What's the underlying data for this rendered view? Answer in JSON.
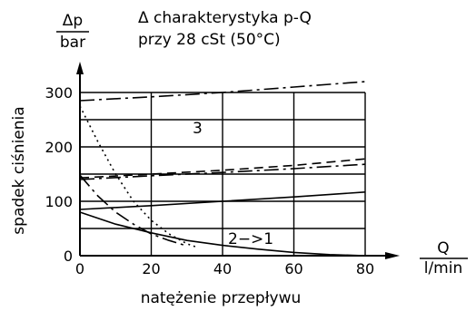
{
  "chart_data": {
    "type": "line",
    "title": "Δ charakterystyka p-Q",
    "subtitle": "przy 28 cSt (50°C)",
    "ylabel": "spadek ciśnienia",
    "xlabel": "natężenie przepływu",
    "y_unit": {
      "symbol": "Δp",
      "unit": "bar"
    },
    "x_unit": {
      "symbol": "Q",
      "unit": "l/min"
    },
    "xlim": [
      0,
      80
    ],
    "ylim": [
      0,
      300
    ],
    "x_ticks": [
      0,
      20,
      40,
      60,
      80
    ],
    "y_ticks": [
      0,
      100,
      200,
      300
    ],
    "grid": true,
    "annotations": [
      "3",
      "2−>1"
    ],
    "series": [
      {
        "style": "dashdot",
        "x": [
          0,
          20,
          40,
          60,
          80
        ],
        "y": [
          285,
          292,
          300,
          310,
          320
        ]
      },
      {
        "style": "dashed",
        "x": [
          0,
          20,
          40,
          60,
          80
        ],
        "y": [
          143,
          150,
          157,
          166,
          178
        ]
      },
      {
        "style": "dashdot",
        "x": [
          0,
          20,
          40,
          60,
          80
        ],
        "y": [
          140,
          147,
          153,
          160,
          168
        ]
      },
      {
        "style": "solid",
        "x": [
          0,
          20,
          40,
          60,
          80
        ],
        "y": [
          85,
          92,
          100,
          108,
          117
        ]
      },
      {
        "style": "dotted",
        "x": [
          0,
          5,
          10,
          15,
          20,
          25,
          30,
          33
        ],
        "y": [
          275,
          210,
          150,
          100,
          65,
          40,
          22,
          15
        ]
      },
      {
        "style": "dashdot",
        "x": [
          0,
          5,
          10,
          15,
          20,
          25,
          30
        ],
        "y": [
          148,
          110,
          80,
          58,
          40,
          28,
          18
        ]
      },
      {
        "style": "solid",
        "x": [
          0,
          10,
          20,
          30,
          40,
          50,
          60,
          70,
          80
        ],
        "y": [
          80,
          58,
          42,
          28,
          19,
          12,
          6,
          2,
          0
        ]
      }
    ]
  }
}
